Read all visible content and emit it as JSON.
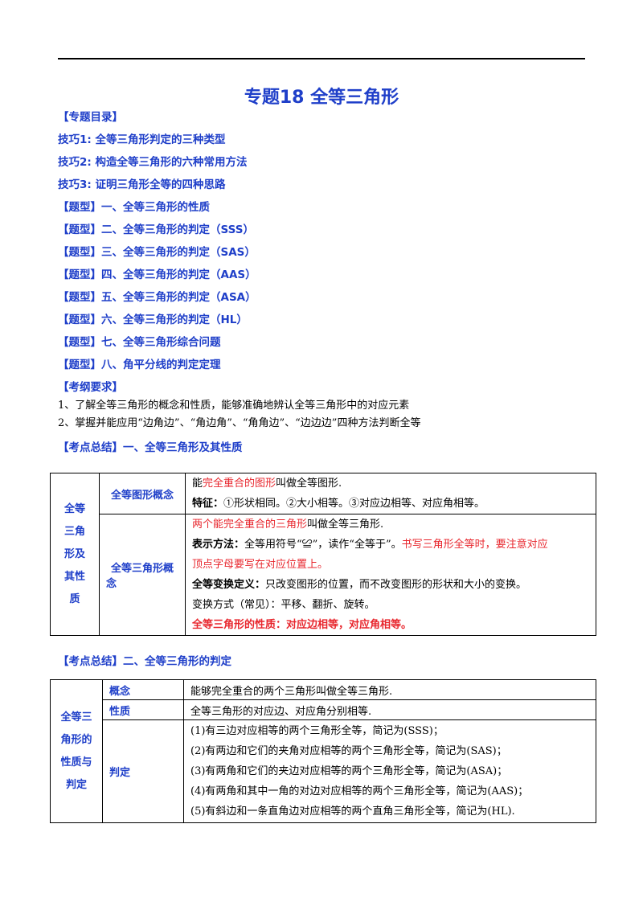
{
  "title": "专题18  全等三角形",
  "catalog": {
    "heading": "【专题目录】",
    "items": [
      "技巧1: 全等三角形判定的三种类型",
      "技巧2: 构造全等三角形的六种常用方法",
      "技巧3: 证明三角形全等的四种思路",
      "【题型】一、全等三角形的性质",
      "【题型】二、全等三角形的判定（SSS）",
      "【题型】三、全等三角形的判定（SAS）",
      "【题型】四、全等三角形的判定（AAS）",
      "【题型】五、全等三角形的判定（ASA）",
      "【题型】六、全等三角形的判定（HL）",
      "【题型】七、全等三角形综合问题",
      "【题型】八、角平分线的判定定理"
    ]
  },
  "requirements": {
    "heading": "【考纲要求】",
    "items": [
      "1、了解全等三角形的概念和性质，能够准确地辨认全等三角形中的对应元素",
      "2、掌握并能应用“边角边”、“角边角”、“角角边”、“边边边”四种方法判断全等"
    ]
  },
  "summary1": {
    "heading": "【考点总结】一、全等三角形及其性质",
    "side_label": [
      "全等",
      "三角",
      "形及",
      "其性",
      "质"
    ],
    "row1": {
      "label": "全等图形概念",
      "line1_pre": "能",
      "line1_red": "完全重合的图形",
      "line1_post": "叫做全等图形.",
      "feature_label": "特征：",
      "feature_text": "①形状相同。②大小相等。③对应边相等、对应角相等。"
    },
    "row2": {
      "label_a": "全等三角形概",
      "label_b": "念",
      "line1_red": "两个能完全重合的三角形",
      "line1_post": "叫做全等三角形.",
      "notation_label": "表示方法：",
      "notation_text": "全等用符号“≌”，读作“全等于”。",
      "notation_red_a": "书写三角形全等时，要注意对应",
      "notation_red_b": "顶点字母要写在对应位置上。",
      "transform_label": "全等变换定义：",
      "transform_text": "只改变图形的位置，而不改变图形的形状和大小的变换。",
      "methods": "变换方式（常见）：平移、翻折、旋转。",
      "property": "全等三角形的性质：对应边相等，对应角相等。"
    }
  },
  "summary2": {
    "heading": "【考点总结】二、全等三角形的判定",
    "side_label": [
      "全等三",
      "角形的",
      "性质与",
      "判定"
    ],
    "rows": [
      {
        "label": "概念",
        "text": "能够完全重合的两个三角形叫做全等三角形."
      },
      {
        "label": "性质",
        "text": "全等三角形的对应边、对应角分别相等."
      }
    ],
    "judge_label": "判定",
    "judge_lines": [
      "(1)有三边对应相等的两个三角形全等，简记为(SSS)；",
      "(2)有两边和它们的夹角对应相等的两个三角形全等，简记为(SAS)；",
      "(3)有两角和它们的夹边对应相等的两个三角形全等，简记为(ASA)；",
      "(4)有两角和其中一角的对边对应相等的两个三角形全等，简记为(AAS)；",
      "(5)有斜边和一条直角边对应相等的两个直角三角形全等，简记为(HL)."
    ]
  }
}
